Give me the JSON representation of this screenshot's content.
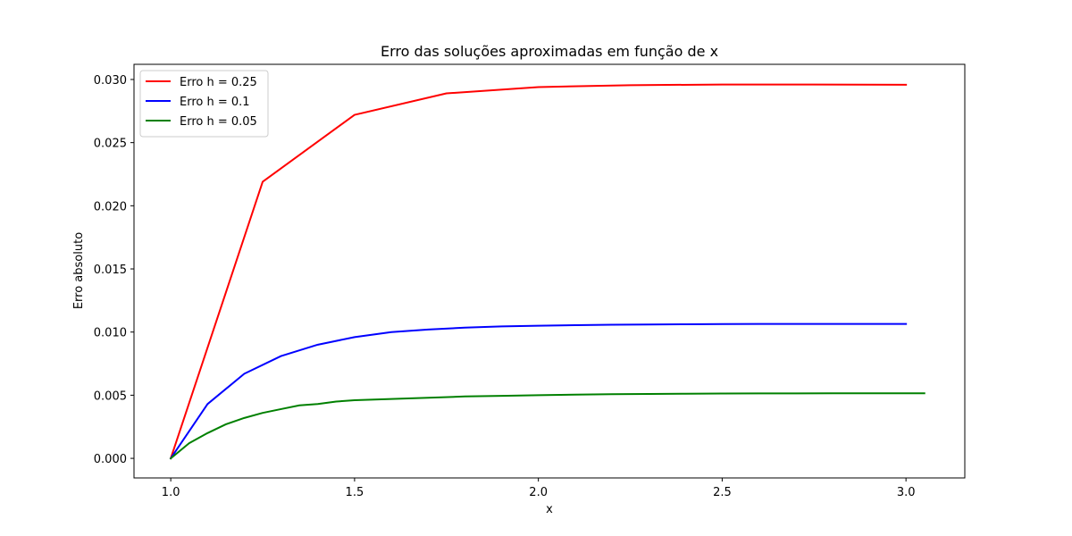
{
  "chart_data": {
    "type": "line",
    "title": "Erro das soluções aproximadas em função de x",
    "xlabel": "x",
    "ylabel": "Erro absoluto",
    "xlim": [
      0.9,
      3.16
    ],
    "ylim": [
      -0.00155,
      0.0312
    ],
    "xticks": [
      1.0,
      1.5,
      2.0,
      2.5,
      3.0
    ],
    "xtick_labels": [
      "1.0",
      "1.5",
      "2.0",
      "2.5",
      "3.0"
    ],
    "yticks": [
      0.0,
      0.005,
      0.01,
      0.015,
      0.02,
      0.025,
      0.03
    ],
    "ytick_labels": [
      "0.000",
      "0.005",
      "0.010",
      "0.015",
      "0.020",
      "0.025",
      "0.030"
    ],
    "grid": false,
    "legend_position": "top-left",
    "series": [
      {
        "name": "Erro h = 0.25",
        "color": "#ff0000",
        "x": [
          1.0,
          1.25,
          1.5,
          1.75,
          2.0,
          2.25,
          2.5,
          2.75,
          3.0
        ],
        "y": [
          0.0,
          0.0219,
          0.0272,
          0.0289,
          0.0294,
          0.02955,
          0.0296,
          0.0296,
          0.02958
        ]
      },
      {
        "name": "Erro h = 0.1",
        "color": "#0000ff",
        "x": [
          1.0,
          1.1,
          1.2,
          1.3,
          1.4,
          1.5,
          1.6,
          1.7,
          1.8,
          1.9,
          2.0,
          2.1,
          2.2,
          2.3,
          2.4,
          2.5,
          2.6,
          2.7,
          2.8,
          2.9,
          3.0
        ],
        "y": [
          0.0,
          0.0043,
          0.0067,
          0.0081,
          0.009,
          0.0096,
          0.01,
          0.0102,
          0.01035,
          0.01045,
          0.0105,
          0.01055,
          0.01058,
          0.0106,
          0.01062,
          0.01063,
          0.01064,
          0.01064,
          0.01064,
          0.01064,
          0.01064
        ]
      },
      {
        "name": "Erro h = 0.05",
        "color": "#008000",
        "x": [
          1.0,
          1.05,
          1.1,
          1.15,
          1.2,
          1.25,
          1.3,
          1.35,
          1.4,
          1.45,
          1.5,
          1.6,
          1.7,
          1.8,
          1.9,
          2.0,
          2.1,
          2.2,
          2.3,
          2.4,
          2.5,
          2.6,
          2.7,
          2.8,
          2.9,
          3.0,
          3.05
        ],
        "y": [
          0.0,
          0.0012,
          0.002,
          0.0027,
          0.0032,
          0.0036,
          0.0039,
          0.0042,
          0.0043,
          0.0045,
          0.0046,
          0.0047,
          0.0048,
          0.0049,
          0.00495,
          0.005,
          0.00505,
          0.00508,
          0.0051,
          0.00512,
          0.00513,
          0.00514,
          0.00514,
          0.00515,
          0.00515,
          0.00515,
          0.00515
        ]
      }
    ]
  }
}
